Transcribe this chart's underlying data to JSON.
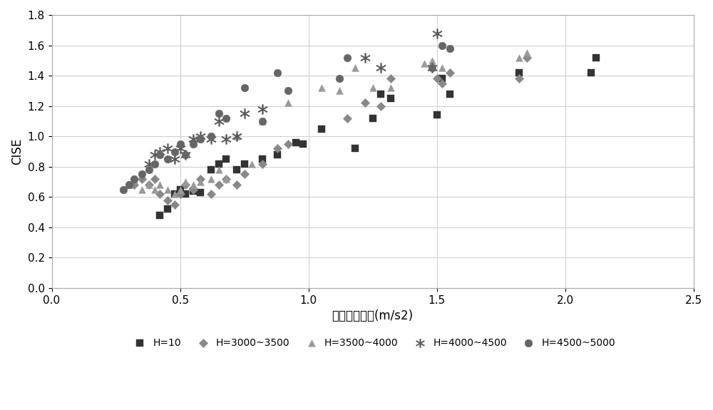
{
  "title": "",
  "xlabel": "横向力加速度(m/s2)",
  "ylabel": "CISE",
  "xlim": [
    0.0,
    2.5
  ],
  "ylim": [
    0.0,
    1.8
  ],
  "xticks": [
    0.0,
    0.5,
    1.0,
    1.5,
    2.0,
    2.5
  ],
  "yticks": [
    0.0,
    0.2,
    0.4,
    0.6,
    0.8,
    1.0,
    1.2,
    1.4,
    1.6,
    1.8
  ],
  "series": {
    "H=10": {
      "x": [
        0.42,
        0.45,
        0.48,
        0.5,
        0.52,
        0.55,
        0.58,
        0.62,
        0.65,
        0.68,
        0.72,
        0.75,
        0.82,
        0.88,
        0.95,
        0.98,
        1.05,
        1.18,
        1.25,
        1.28,
        1.32,
        1.5,
        1.52,
        1.55,
        1.82,
        2.1,
        2.12
      ],
      "y": [
        0.48,
        0.52,
        0.62,
        0.65,
        0.62,
        0.64,
        0.63,
        0.78,
        0.82,
        0.85,
        0.78,
        0.82,
        0.85,
        0.88,
        0.96,
        0.95,
        1.05,
        0.92,
        1.12,
        1.28,
        1.25,
        1.14,
        1.38,
        1.28,
        1.42,
        1.42,
        1.52
      ],
      "marker": "s",
      "color": "#333333",
      "size": 45,
      "label": "H=10"
    },
    "H=3000~3500": {
      "x": [
        0.32,
        0.35,
        0.38,
        0.4,
        0.42,
        0.45,
        0.48,
        0.5,
        0.52,
        0.55,
        0.58,
        0.62,
        0.65,
        0.68,
        0.72,
        0.75,
        0.82,
        0.88,
        0.92,
        1.15,
        1.22,
        1.28,
        1.32,
        1.5,
        1.52,
        1.55,
        1.82,
        1.85
      ],
      "y": [
        0.68,
        0.72,
        0.68,
        0.72,
        0.62,
        0.58,
        0.55,
        0.62,
        0.68,
        0.65,
        0.72,
        0.62,
        0.68,
        0.72,
        0.68,
        0.75,
        0.82,
        0.92,
        0.95,
        1.12,
        1.22,
        1.2,
        1.38,
        1.38,
        1.35,
        1.42,
        1.38,
        1.52
      ],
      "marker": "D",
      "color": "#888888",
      "size": 40,
      "label": "H=3000~3500"
    },
    "H=3500~4000": {
      "x": [
        0.3,
        0.32,
        0.35,
        0.38,
        0.4,
        0.42,
        0.45,
        0.48,
        0.5,
        0.52,
        0.55,
        0.58,
        0.62,
        0.65,
        0.68,
        0.72,
        0.78,
        0.82,
        0.92,
        1.05,
        1.12,
        1.18,
        1.25,
        1.32,
        1.45,
        1.48,
        1.52,
        1.82,
        1.85
      ],
      "y": [
        0.68,
        0.72,
        0.65,
        0.68,
        0.65,
        0.68,
        0.65,
        0.62,
        0.65,
        0.7,
        0.68,
        0.7,
        0.72,
        0.78,
        0.72,
        1.0,
        0.82,
        1.1,
        1.22,
        1.32,
        1.3,
        1.45,
        1.32,
        1.32,
        1.48,
        1.5,
        1.45,
        1.52,
        1.55
      ],
      "marker": "^",
      "color": "#999999",
      "size": 50,
      "label": "H=3500~4000"
    },
    "H=4000~4500": {
      "x": [
        0.38,
        0.4,
        0.42,
        0.45,
        0.48,
        0.5,
        0.52,
        0.55,
        0.58,
        0.62,
        0.65,
        0.68,
        0.72,
        0.75,
        0.82,
        1.22,
        1.28,
        1.48,
        1.5
      ],
      "y": [
        0.82,
        0.88,
        0.9,
        0.92,
        0.85,
        0.92,
        0.88,
        0.98,
        1.0,
        0.98,
        1.1,
        0.98,
        1.0,
        1.15,
        1.18,
        1.52,
        1.45,
        1.45,
        1.68
      ],
      "marker": "$*$",
      "color": "#555555",
      "size": 100,
      "label": "H=4000~4500"
    },
    "H=4500~5000": {
      "x": [
        0.28,
        0.3,
        0.32,
        0.35,
        0.38,
        0.4,
        0.42,
        0.45,
        0.48,
        0.5,
        0.52,
        0.55,
        0.58,
        0.62,
        0.65,
        0.68,
        0.75,
        0.82,
        0.88,
        0.92,
        1.12,
        1.15,
        1.48,
        1.52,
        1.55
      ],
      "y": [
        0.65,
        0.68,
        0.72,
        0.75,
        0.78,
        0.82,
        0.88,
        0.85,
        0.9,
        0.95,
        0.88,
        0.95,
        0.98,
        1.0,
        1.15,
        1.12,
        1.32,
        1.1,
        1.42,
        1.3,
        1.38,
        1.52,
        1.45,
        1.6,
        1.58
      ],
      "marker": "o",
      "color": "#666666",
      "size": 60,
      "label": "H=4500~5000"
    }
  },
  "background_color": "#ffffff",
  "grid_color": "#d0d0d0",
  "font_size": 11,
  "legend_font_size": 10
}
